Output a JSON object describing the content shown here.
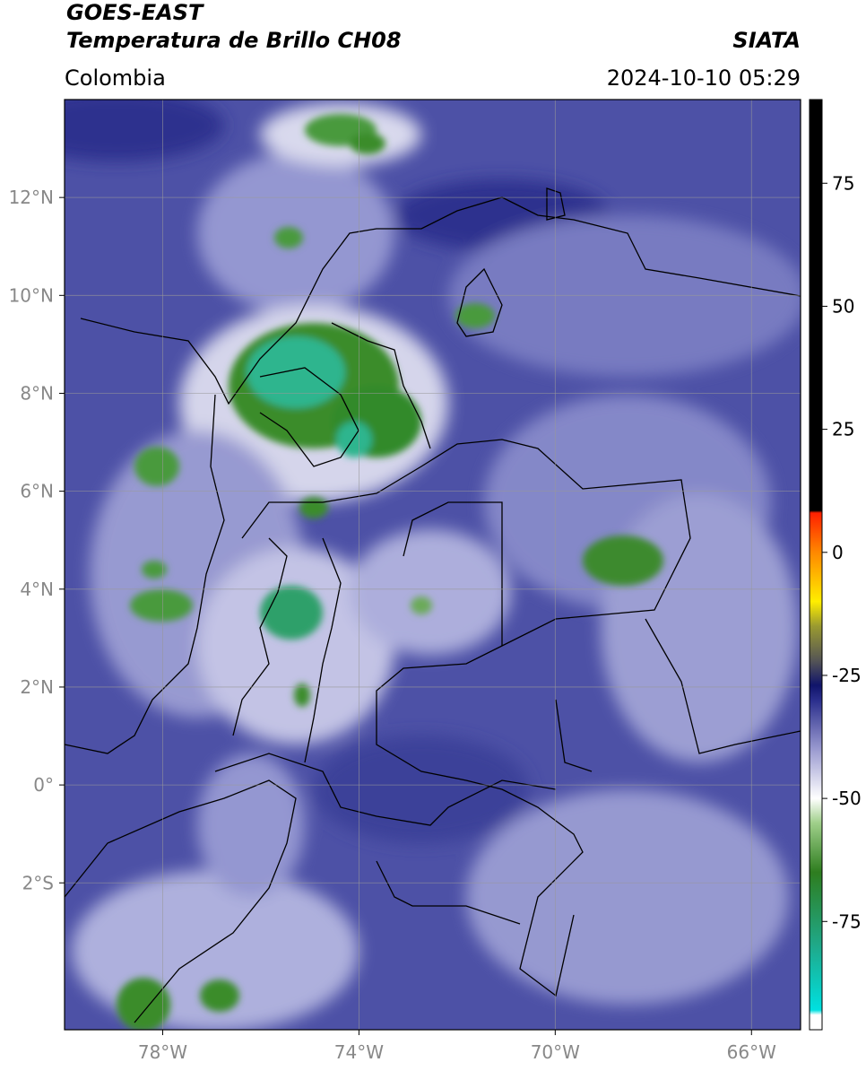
{
  "header": {
    "title_line1": "GOES-EAST",
    "title_line2": "Temperatura de Brillo CH08",
    "source": "SIATA",
    "region": "Colombia",
    "timestamp": "2024-10-10 05:29"
  },
  "map": {
    "xlim": [
      -80,
      -65
    ],
    "ylim": [
      -5,
      14
    ],
    "xticks": [
      {
        "value": -78,
        "label": "78°W"
      },
      {
        "value": -74,
        "label": "74°W"
      },
      {
        "value": -70,
        "label": "70°W"
      },
      {
        "value": -66,
        "label": "66°W"
      }
    ],
    "yticks": [
      {
        "value": 12,
        "label": "12°N"
      },
      {
        "value": 10,
        "label": "10°N"
      },
      {
        "value": 8,
        "label": "8°N"
      },
      {
        "value": 6,
        "label": "6°N"
      },
      {
        "value": 4,
        "label": "4°N"
      },
      {
        "value": 2,
        "label": "2°N"
      },
      {
        "value": 0,
        "label": "0°"
      },
      {
        "value": -2,
        "label": "2°S"
      }
    ],
    "grid": true
  },
  "colorbar": {
    "lim": [
      -97,
      92
    ],
    "ticks": [
      75,
      50,
      25,
      0,
      -25,
      -50,
      -75
    ],
    "colormap": [
      {
        "value": -97,
        "color": "#ffffff"
      },
      {
        "value": -94,
        "color": "#ffffff"
      },
      {
        "value": -93,
        "color": "#00e0e0"
      },
      {
        "value": -80,
        "color": "#1fa98a"
      },
      {
        "value": -65,
        "color": "#2e7d1f"
      },
      {
        "value": -55,
        "color": "#9fcf8a"
      },
      {
        "value": -50,
        "color": "#ffffff"
      },
      {
        "value": -40,
        "color": "#9a9ad0"
      },
      {
        "value": -30,
        "color": "#2a2e8c"
      },
      {
        "value": -27,
        "color": "#10146a"
      },
      {
        "value": -22,
        "color": "#555555"
      },
      {
        "value": -15,
        "color": "#9a9a30"
      },
      {
        "value": -10,
        "color": "#ffee00"
      },
      {
        "value": 0,
        "color": "#ff8800"
      },
      {
        "value": 8,
        "color": "#ff2000"
      },
      {
        "value": 8.5,
        "color": "#000000"
      },
      {
        "value": 92,
        "color": "#000000"
      }
    ]
  }
}
